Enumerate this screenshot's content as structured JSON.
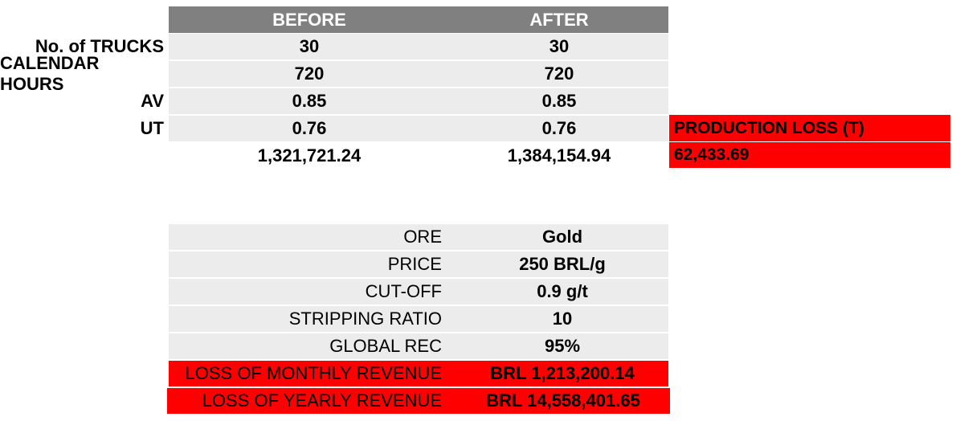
{
  "table1": {
    "headers": {
      "before": "BEFORE",
      "after": "AFTER"
    },
    "rows": [
      {
        "label": "No. of TRUCKS",
        "before": "30",
        "after": "30"
      },
      {
        "label": "CALENDAR HOURS",
        "before": "720",
        "after": "720"
      },
      {
        "label": "AV",
        "before": "0.85",
        "after": "0.85"
      },
      {
        "label": "UT",
        "before": "0.76",
        "after": "0.76"
      }
    ],
    "totals": {
      "before": "1,321,721.24",
      "after": "1,384,154.94"
    },
    "production_loss": {
      "label": "PRODUCTION LOSS (T)",
      "value": "62,433.69"
    }
  },
  "table2": {
    "rows": [
      {
        "label": "ORE",
        "value": "Gold"
      },
      {
        "label": "PRICE",
        "value": "250 BRL/g"
      },
      {
        "label": "CUT-OFF",
        "value": "0.9 g/t"
      },
      {
        "label": "STRIPPING RATIO",
        "value": "10"
      },
      {
        "label": "GLOBAL REC",
        "value": "95%"
      }
    ],
    "monthly": {
      "label": "LOSS OF MONTHLY REVENUE",
      "value": "BRL 1,213,200.14"
    },
    "yearly": {
      "label": "LOSS OF YEARLY REVENUE",
      "value": "BRL 14,558,401.65"
    }
  },
  "colors": {
    "header": "#808080",
    "cell": "#ececec",
    "highlight": "#ff0000"
  }
}
